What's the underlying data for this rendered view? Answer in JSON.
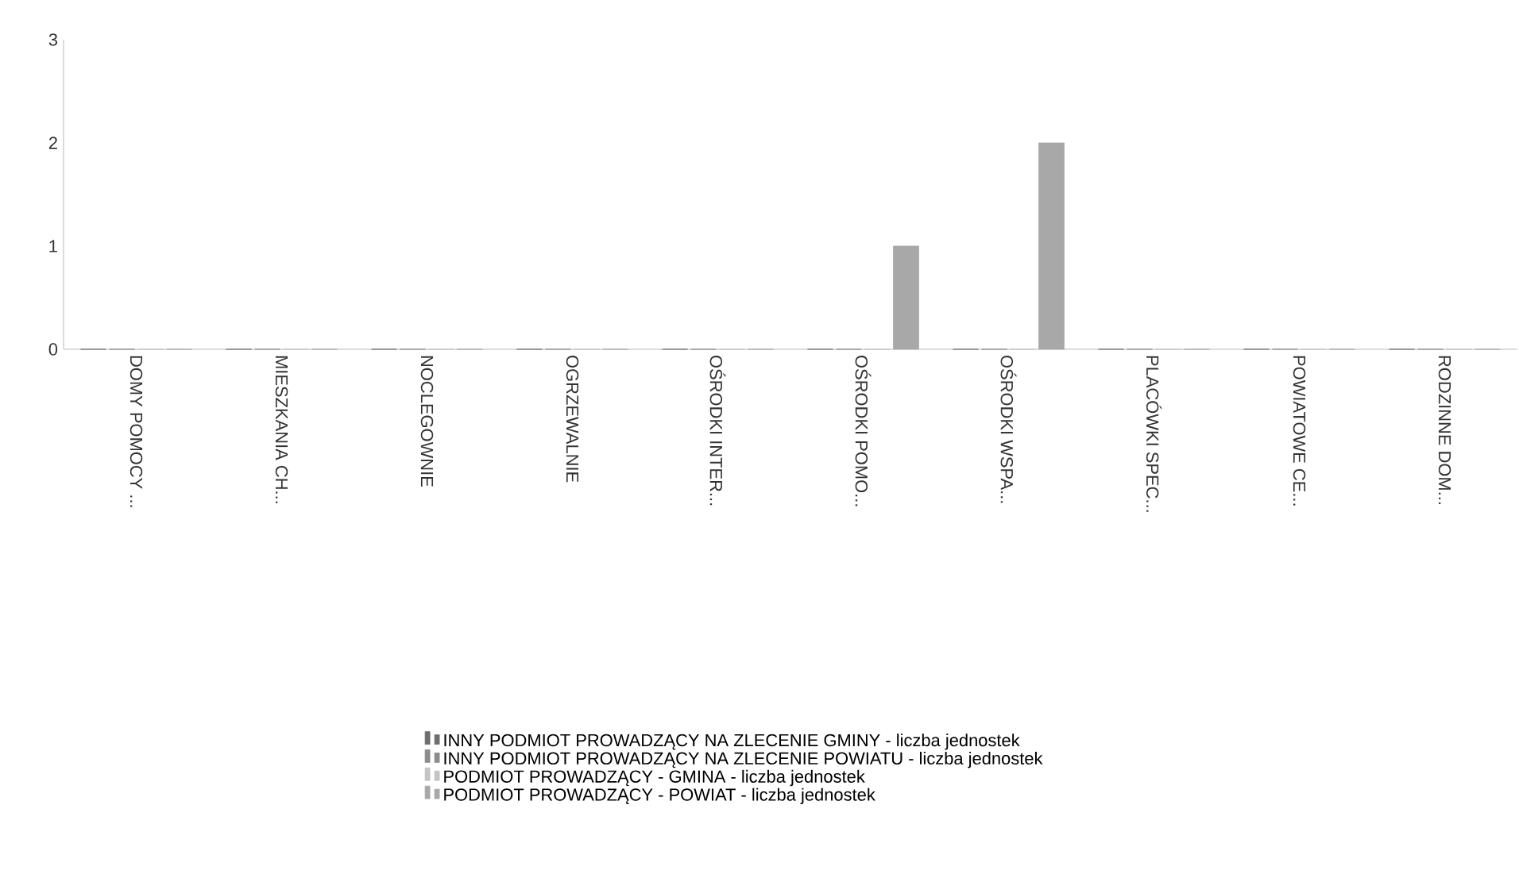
{
  "chart_data": {
    "type": "bar",
    "categories": [
      "DOMY POMOCY ...",
      "MIESZKANIA CH...",
      "NOCLEGOWNIE",
      "OGRZEWALNIE",
      "OŚRODKI INTER...",
      "OŚRODKI POMO...",
      "OŚRODKI WSPA...",
      "PLACÓWKI SPEC...",
      "POWIATOWE CE...",
      "RODZINNE DOM..."
    ],
    "series": [
      {
        "name": "INNY PODMIOT PROWADZĄCY NA ZLECENIE GMINY - liczba jednostek",
        "color": "#6e6e6e",
        "values": [
          0,
          0,
          0,
          0,
          0,
          0,
          0,
          0,
          0,
          0
        ]
      },
      {
        "name": "INNY PODMIOT PROWADZĄCY NA ZLECENIE POWIATU - liczba jednostek",
        "color": "#8c8c8c",
        "values": [
          0,
          0,
          0,
          0,
          0,
          0,
          0,
          0,
          0,
          0
        ]
      },
      {
        "name": "PODMIOT PROWADZĄCY - GMINA - liczba jednostek",
        "color": "#c4c4c4",
        "values": [
          0,
          0,
          0,
          0,
          0,
          0,
          0,
          0,
          0,
          0
        ]
      },
      {
        "name": "PODMIOT PROWADZĄCY - POWIAT - liczba jednostek",
        "color": "#a8a8a8",
        "values": [
          0,
          0,
          0,
          0,
          0,
          1,
          2,
          0,
          0,
          0
        ]
      }
    ],
    "ylim": [
      0,
      3
    ],
    "yticks": [
      0,
      1,
      2,
      3
    ],
    "legend": "bottom"
  }
}
